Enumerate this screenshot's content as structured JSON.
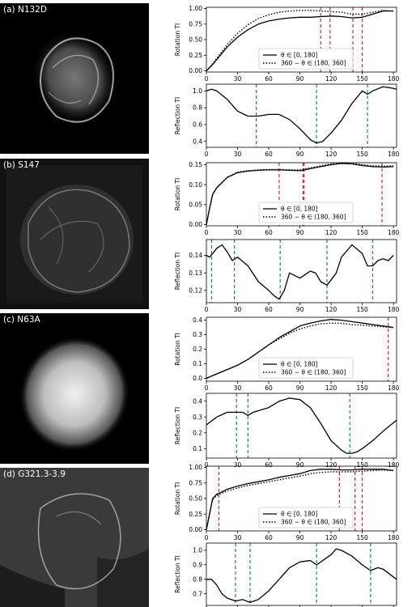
{
  "theta_legend": "θ ∈ [0, 180]",
  "mirror_legend": "360 − θ ∈ (180, 360]",
  "rotation_ylabel": "Rotation TI",
  "reflection_ylabel": "Reflection TI",
  "colors": {
    "solid": "#000000",
    "dotted": "#000000",
    "red_marker": "#d62728",
    "blue_marker": "#1f77b4"
  },
  "chart_data": [
    {
      "label": "(a) N132D",
      "rotation": {
        "type": "line",
        "xlim": [
          0,
          183
        ],
        "ylim": [
          -0.02,
          1.02
        ],
        "xticks": [
          0,
          30,
          60,
          90,
          120,
          150,
          180
        ],
        "yticks": [
          0.0,
          0.25,
          0.5,
          0.75,
          1.0
        ],
        "ytick_labels": [
          "0.00",
          "0.25",
          "0.50",
          "0.75",
          "1.00"
        ],
        "series": [
          {
            "name": "θ ∈ [0, 180]",
            "style": "solid",
            "x": [
              0,
              5,
              10,
              20,
              30,
              40,
              50,
              60,
              70,
              80,
              90,
              100,
              110,
              120,
              130,
              140,
              150,
              160,
              170,
              180
            ],
            "y": [
              0.0,
              0.08,
              0.18,
              0.38,
              0.54,
              0.66,
              0.75,
              0.8,
              0.83,
              0.85,
              0.86,
              0.86,
              0.87,
              0.88,
              0.87,
              0.85,
              0.86,
              0.91,
              0.96,
              0.96
            ]
          },
          {
            "name": "360 − θ ∈ (180, 360]",
            "style": "dotted",
            "x": [
              0,
              5,
              10,
              20,
              30,
              40,
              50,
              60,
              70,
              80,
              90,
              100,
              110,
              120,
              130,
              140,
              150,
              160,
              170,
              180
            ],
            "y": [
              0.0,
              0.09,
              0.2,
              0.42,
              0.6,
              0.74,
              0.84,
              0.9,
              0.94,
              0.96,
              0.97,
              0.97,
              0.96,
              0.95,
              0.94,
              0.91,
              0.91,
              0.94,
              0.97,
              0.96
            ]
          }
        ],
        "markers": [
          110,
          119,
          141,
          150
        ]
      },
      "reflection": {
        "type": "line",
        "xlim": [
          0,
          183
        ],
        "ylim": [
          0.33,
          1.08
        ],
        "xticks": [
          0,
          30,
          60,
          90,
          120,
          150,
          180
        ],
        "yticks": [
          0.4,
          0.6,
          0.8,
          1.0
        ],
        "ytick_labels": [
          "0.4",
          "0.6",
          "0.8",
          "1.0"
        ],
        "series": [
          {
            "name": "",
            "style": "solid",
            "x": [
              0,
              5,
              10,
              20,
              30,
              40,
              50,
              60,
              70,
              80,
              90,
              100,
              106,
              112,
              120,
              130,
              140,
              150,
              155,
              160,
              170,
              180,
              183
            ],
            "y": [
              1.0,
              1.02,
              1.0,
              0.9,
              0.76,
              0.7,
              0.7,
              0.72,
              0.72,
              0.66,
              0.55,
              0.42,
              0.38,
              0.4,
              0.5,
              0.65,
              0.85,
              1.0,
              0.96,
              1.0,
              1.05,
              1.03,
              1.02
            ]
          }
        ],
        "markers": [
          48,
          106,
          155
        ]
      }
    },
    {
      "label": "(b) S147",
      "rotation": {
        "type": "line",
        "xlim": [
          0,
          183
        ],
        "ylim": [
          -0.003,
          0.155
        ],
        "xticks": [
          0,
          30,
          60,
          90,
          120,
          150,
          180
        ],
        "yticks": [
          0.0,
          0.05,
          0.1,
          0.15
        ],
        "ytick_labels": [
          "0.00",
          "0.05",
          "0.10",
          "0.15"
        ],
        "series": [
          {
            "name": "θ ∈ [0, 180]",
            "style": "solid",
            "x": [
              0,
              3,
              6,
              10,
              15,
              20,
              30,
              40,
              50,
              60,
              70,
              80,
              90,
              100,
              110,
              120,
              130,
              140,
              150,
              160,
              170,
              180
            ],
            "y": [
              0.0,
              0.04,
              0.075,
              0.092,
              0.105,
              0.118,
              0.13,
              0.134,
              0.136,
              0.137,
              0.137,
              0.136,
              0.135,
              0.14,
              0.145,
              0.15,
              0.153,
              0.152,
              0.148,
              0.145,
              0.144,
              0.145
            ]
          },
          {
            "name": "360 − θ ∈ (180, 360]",
            "style": "dotted",
            "x": [
              0,
              3,
              6,
              10,
              15,
              20,
              30,
              40,
              50,
              60,
              70,
              80,
              90,
              100,
              110,
              120,
              130,
              140,
              150,
              160,
              170,
              180
            ],
            "y": [
              0.0,
              0.04,
              0.076,
              0.093,
              0.106,
              0.119,
              0.131,
              0.135,
              0.137,
              0.138,
              0.138,
              0.137,
              0.137,
              0.142,
              0.147,
              0.152,
              0.155,
              0.154,
              0.15,
              0.147,
              0.146,
              0.147
            ]
          }
        ],
        "markers": [
          70,
          93,
          94,
          169
        ]
      },
      "reflection": {
        "type": "line",
        "xlim": [
          0,
          183
        ],
        "ylim": [
          0.113,
          0.149
        ],
        "xticks": [
          0,
          30,
          60,
          90,
          120,
          150,
          180
        ],
        "yticks": [
          0.12,
          0.13,
          0.14
        ],
        "ytick_labels": [
          "0.12",
          "0.13",
          "0.14"
        ],
        "series": [
          {
            "name": "",
            "style": "solid",
            "x": [
              0,
              3,
              6,
              10,
              15,
              20,
              25,
              30,
              40,
              50,
              60,
              65,
              70,
              75,
              80,
              90,
              100,
              105,
              110,
              116,
              120,
              125,
              130,
              140,
              150,
              155,
              160,
              165,
              170,
              175,
              180
            ],
            "y": [
              0.14,
              0.139,
              0.141,
              0.144,
              0.146,
              0.142,
              0.137,
              0.139,
              0.134,
              0.125,
              0.12,
              0.117,
              0.115,
              0.12,
              0.13,
              0.127,
              0.131,
              0.13,
              0.125,
              0.123,
              0.126,
              0.13,
              0.139,
              0.146,
              0.141,
              0.134,
              0.134,
              0.137,
              0.138,
              0.137,
              0.14
            ]
          }
        ],
        "markers": [
          5,
          27,
          71,
          116,
          160
        ]
      }
    },
    {
      "label": "(c) N63A",
      "rotation": {
        "type": "line",
        "xlim": [
          0,
          183
        ],
        "ylim": [
          -0.02,
          0.42
        ],
        "xticks": [
          0,
          30,
          60,
          90,
          120,
          150,
          180
        ],
        "yticks": [
          0.0,
          0.1,
          0.2,
          0.3,
          0.4
        ],
        "ytick_labels": [
          "0.0",
          "0.1",
          "0.2",
          "0.3",
          "0.4"
        ],
        "series": [
          {
            "name": "θ ∈ [0, 180]",
            "style": "solid",
            "x": [
              0,
              10,
              20,
              30,
              40,
              50,
              60,
              70,
              80,
              90,
              100,
              110,
              120,
              130,
              140,
              150,
              160,
              170,
              180
            ],
            "y": [
              0.0,
              0.03,
              0.06,
              0.09,
              0.13,
              0.18,
              0.23,
              0.28,
              0.32,
              0.36,
              0.38,
              0.395,
              0.405,
              0.4,
              0.39,
              0.38,
              0.37,
              0.36,
              0.35
            ]
          },
          {
            "name": "360 − θ ∈ (180, 360]",
            "style": "dotted",
            "x": [
              0,
              10,
              20,
              30,
              40,
              50,
              60,
              70,
              80,
              90,
              100,
              110,
              120,
              130,
              140,
              150,
              160,
              170,
              180
            ],
            "y": [
              0.0,
              0.03,
              0.06,
              0.09,
              0.13,
              0.18,
              0.23,
              0.27,
              0.31,
              0.34,
              0.36,
              0.375,
              0.38,
              0.378,
              0.37,
              0.365,
              0.36,
              0.355,
              0.35
            ]
          }
        ],
        "markers": [
          175
        ]
      },
      "reflection": {
        "type": "line",
        "xlim": [
          0,
          183
        ],
        "ylim": [
          0.04,
          0.45
        ],
        "xticks": [
          0,
          30,
          60,
          90,
          120,
          150,
          180
        ],
        "yticks": [
          0.1,
          0.2,
          0.3,
          0.4
        ],
        "ytick_labels": [
          "0.1",
          "0.2",
          "0.3",
          "0.4"
        ],
        "series": [
          {
            "name": "",
            "style": "solid",
            "x": [
              0,
              10,
              20,
              30,
              35,
              40,
              45,
              50,
              60,
              70,
              80,
              90,
              100,
              110,
              120,
              130,
              135,
              140,
              145,
              150,
              160,
              170,
              183
            ],
            "y": [
              0.25,
              0.3,
              0.33,
              0.33,
              0.33,
              0.31,
              0.33,
              0.34,
              0.36,
              0.4,
              0.42,
              0.41,
              0.36,
              0.26,
              0.15,
              0.09,
              0.07,
              0.07,
              0.08,
              0.1,
              0.15,
              0.21,
              0.28
            ]
          }
        ],
        "markers": [
          29,
          40,
          138
        ]
      }
    },
    {
      "label": "(d) G321.3-3.9",
      "rotation": {
        "type": "line",
        "xlim": [
          0,
          183
        ],
        "ylim": [
          -0.02,
          1.02
        ],
        "xticks": [
          0,
          30,
          60,
          90,
          120,
          150,
          180
        ],
        "yticks": [
          0.0,
          0.25,
          0.5,
          0.75,
          1.0
        ],
        "ytick_labels": [
          "0.00",
          "0.25",
          "0.50",
          "0.75",
          "1.00"
        ],
        "series": [
          {
            "name": "θ ∈ [0, 180]",
            "style": "solid",
            "x": [
              0,
              3,
              6,
              10,
              14,
              20,
              30,
              40,
              50,
              60,
              70,
              80,
              90,
              100,
              110,
              120,
              130,
              140,
              150,
              160,
              170,
              180
            ],
            "y": [
              0.0,
              0.25,
              0.5,
              0.57,
              0.6,
              0.65,
              0.7,
              0.74,
              0.77,
              0.8,
              0.84,
              0.87,
              0.9,
              0.95,
              0.97,
              0.97,
              0.96,
              0.96,
              0.97,
              0.97,
              0.97,
              0.95
            ]
          },
          {
            "name": "360 − θ ∈ (180, 360]",
            "style": "dotted",
            "x": [
              0,
              3,
              6,
              10,
              14,
              20,
              30,
              40,
              50,
              60,
              70,
              80,
              90,
              100,
              110,
              120,
              130,
              140,
              150,
              160,
              170,
              180
            ],
            "y": [
              0.0,
              0.25,
              0.48,
              0.55,
              0.58,
              0.62,
              0.67,
              0.71,
              0.74,
              0.77,
              0.8,
              0.83,
              0.86,
              0.9,
              0.92,
              0.93,
              0.93,
              0.93,
              0.94,
              0.95,
              0.96,
              0.95
            ]
          }
        ],
        "markers": [
          12,
          128,
          143,
          150
        ]
      },
      "reflection": {
        "type": "line",
        "xlim": [
          0,
          183
        ],
        "ylim": [
          0.62,
          1.05
        ],
        "xticks": [
          0,
          30,
          60,
          90,
          120,
          150,
          180
        ],
        "yticks": [
          0.7,
          0.8,
          0.9,
          1.0
        ],
        "ytick_labels": [
          "0.7",
          "0.8",
          "0.9",
          "1.0"
        ],
        "series": [
          {
            "name": "",
            "style": "solid",
            "x": [
              0,
              5,
              10,
              15,
              20,
              28,
              35,
              42,
              50,
              60,
              70,
              80,
              90,
              100,
              106,
              110,
              120,
              125,
              130,
              140,
              150,
              158,
              165,
              170,
              183
            ],
            "y": [
              0.8,
              0.8,
              0.76,
              0.7,
              0.67,
              0.65,
              0.66,
              0.64,
              0.66,
              0.72,
              0.8,
              0.88,
              0.92,
              0.93,
              0.9,
              0.92,
              0.97,
              1.01,
              1.0,
              0.96,
              0.9,
              0.86,
              0.88,
              0.87,
              0.8
            ]
          }
        ],
        "markers": [
          28,
          42,
          106,
          158
        ]
      }
    }
  ]
}
